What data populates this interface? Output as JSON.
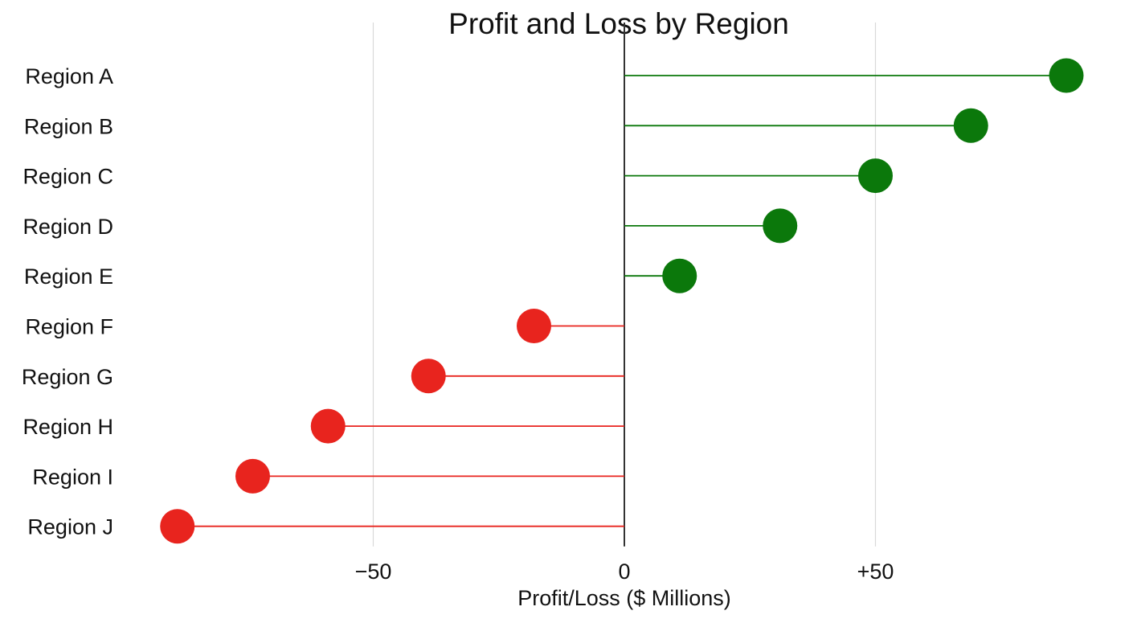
{
  "chart_data": {
    "type": "lollipop",
    "title": "Profit and Loss by Region",
    "xlabel": "Profit/Loss ($ Millions)",
    "ylabel": "",
    "xlim": [
      -95,
      92
    ],
    "xticks": [
      -50,
      0,
      50
    ],
    "xtick_labels": [
      "−50",
      "0",
      "+50"
    ],
    "grid": "vertical",
    "categories": [
      "Region A",
      "Region B",
      "Region C",
      "Region D",
      "Region E",
      "Region F",
      "Region G",
      "Region H",
      "Region I",
      "Region J"
    ],
    "values": [
      88,
      69,
      50,
      31,
      11,
      -18,
      -39,
      -59,
      -74,
      -89
    ],
    "colors": {
      "positive": "#0b780b",
      "negative": "#e8241e",
      "grid": "#d9d9d9",
      "zero_line": "#333333"
    }
  }
}
